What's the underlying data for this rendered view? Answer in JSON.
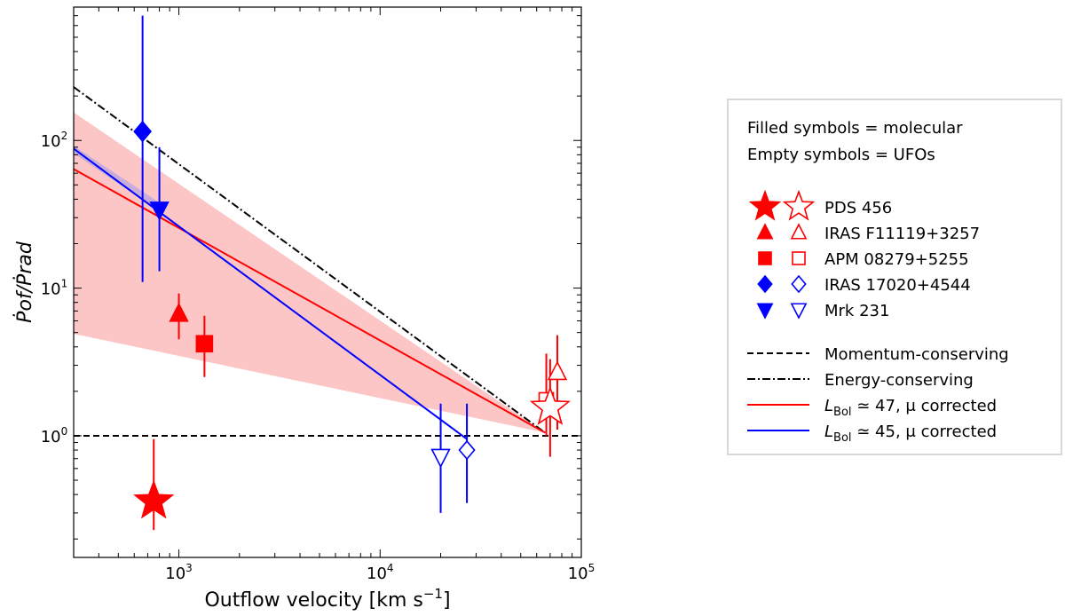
{
  "chart_data": {
    "type": "scatter",
    "xlabel": "Outflow velocity [km s",
    "xlabel_sup": "−1",
    "xlabel_end": "]",
    "ylabel": "Ṗof/Ṗrad",
    "xscale": "log",
    "yscale": "log",
    "xlim": [
      300,
      100000
    ],
    "ylim": [
      0.15,
      800
    ],
    "x_ticks": [
      {
        "value": 1000,
        "base": "10",
        "exp": "3"
      },
      {
        "value": 10000,
        "base": "10",
        "exp": "4"
      },
      {
        "value": 100000,
        "base": "10",
        "exp": "5"
      }
    ],
    "y_ticks": [
      {
        "value": 1,
        "base": "10",
        "exp": "0"
      },
      {
        "value": 10,
        "base": "10",
        "exp": "1"
      },
      {
        "value": 100,
        "base": "10",
        "exp": "2"
      }
    ],
    "colors": {
      "red": "#ff0000",
      "blue": "#0000ff",
      "band": "#fcc0c0",
      "band_blue": "#c4a8dc"
    },
    "points": [
      {
        "name": "PDS 456 molecular",
        "marker": "star",
        "filled": true,
        "color": "#ff0000",
        "x": 750,
        "y": 0.36,
        "ylo": 0.23,
        "yhi": 0.95,
        "size": 22
      },
      {
        "name": "IRAS F11119+3257 molecular",
        "marker": "triangle-up",
        "filled": true,
        "color": "#ff0000",
        "x": 1000,
        "y": 6.7,
        "ylo": 4.5,
        "yhi": 9.2,
        "size": 11
      },
      {
        "name": "APM 08279+5255 molecular",
        "marker": "square",
        "filled": true,
        "color": "#ff0000",
        "x": 1340,
        "y": 4.2,
        "ylo": 2.5,
        "yhi": 6.5,
        "size": 9
      },
      {
        "name": "IRAS 17020+4544 molecular",
        "marker": "diamond",
        "filled": true,
        "color": "#0000ff",
        "x": 660,
        "y": 115,
        "ylo": 11,
        "yhi": 700,
        "size": 11
      },
      {
        "name": "Mrk 231 molecular",
        "marker": "triangle-down",
        "filled": true,
        "color": "#0000ff",
        "x": 800,
        "y": 34,
        "ylo": 13,
        "yhi": 90,
        "size": 11
      },
      {
        "name": "IRAS 17020+4544 UFO",
        "marker": "diamond",
        "filled": false,
        "color": "#0000ff",
        "x": 27000,
        "y": 0.8,
        "ylo": 0.35,
        "yhi": 1.65,
        "size": 10
      },
      {
        "name": "Mrk 231 UFO",
        "marker": "triangle-down",
        "filled": false,
        "color": "#0000ff",
        "x": 20000,
        "y": 0.72,
        "ylo": 0.3,
        "yhi": 1.65,
        "size": 11
      },
      {
        "name": "APM 08279+5255 UFO",
        "marker": "square",
        "filled": false,
        "color": "#ff0000",
        "x": 67000,
        "y": 1.75,
        "ylo": 1.0,
        "yhi": 3.6,
        "size": 8
      },
      {
        "name": "PDS 456 UFO",
        "marker": "star",
        "filled": false,
        "color": "#ff0000",
        "x": 70000,
        "y": 1.55,
        "ylo": 0.72,
        "yhi": 3.3,
        "size": 22
      },
      {
        "name": "IRAS F11119+3257 UFO",
        "marker": "triangle-up",
        "filled": false,
        "color": "#ff0000",
        "x": 76000,
        "y": 2.7,
        "ylo": 1.1,
        "yhi": 4.8,
        "size": 11
      }
    ],
    "lines": [
      {
        "name": "Momentum-conserving",
        "style": "dashed",
        "color": "#000000",
        "points": [
          [
            300,
            1
          ],
          [
            100000,
            1
          ]
        ]
      },
      {
        "name": "Energy-conserving",
        "style": "dashdot",
        "color": "#000000",
        "points": [
          [
            300,
            230
          ],
          [
            66000,
            1.05
          ]
        ]
      },
      {
        "name": "L_Bol ≃ 47, μ corrected",
        "style": "solid",
        "color": "#ff0000",
        "points": [
          [
            300,
            64
          ],
          [
            66000,
            1.05
          ]
        ]
      },
      {
        "name": "L_Bol ≃ 45, μ corrected",
        "style": "solid",
        "color": "#0000ff",
        "points": [
          [
            300,
            88
          ],
          [
            27000,
            0.95
          ]
        ]
      }
    ],
    "bands": [
      {
        "name": "red-band",
        "color": "#fcc0c0",
        "upper": [
          [
            300,
            155
          ],
          [
            66000,
            1.05
          ]
        ],
        "lower": [
          [
            300,
            4.9
          ],
          [
            66000,
            1.05
          ]
        ]
      },
      {
        "name": "blue-band",
        "color": "#c4a8dc",
        "upper": [
          [
            300,
            92
          ],
          [
            800,
            38
          ]
        ],
        "lower": [
          [
            300,
            82
          ],
          [
            800,
            33
          ]
        ]
      }
    ]
  },
  "legend": {
    "note_filled": "Filled symbols = molecular",
    "note_empty": "Empty symbols = UFOs",
    "sources": [
      {
        "label": "PDS 456",
        "marker": "star",
        "color": "#ff0000"
      },
      {
        "label": "IRAS F11119+3257",
        "marker": "triangle-up",
        "color": "#ff0000"
      },
      {
        "label": "APM 08279+5255",
        "marker": "square",
        "color": "#ff0000"
      },
      {
        "label": "IRAS 17020+4544",
        "marker": "diamond",
        "color": "#0000ff"
      },
      {
        "label": "Mrk 231",
        "marker": "triangle-down",
        "color": "#0000ff"
      }
    ],
    "lines": [
      {
        "label": "Momentum-conserving",
        "style": "dashed",
        "color": "#000000"
      },
      {
        "label": "Energy-conserving",
        "style": "dashdot",
        "color": "#000000"
      },
      {
        "label_pre": "L",
        "label_sub": "Bol",
        "label_post": " ≃ 47, μ corrected",
        "style": "solid",
        "color": "#ff0000"
      },
      {
        "label_pre": "L",
        "label_sub": "Bol",
        "label_post": " ≃ 45, μ corrected",
        "style": "solid",
        "color": "#0000ff"
      }
    ]
  }
}
